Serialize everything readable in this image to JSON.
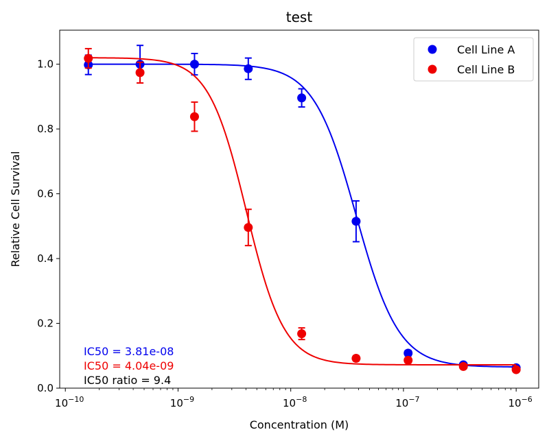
{
  "chart_data": {
    "type": "scatter",
    "title": "test",
    "xlabel": "Concentration (M)",
    "ylabel": "Relative Cell Survival",
    "xscale": "log",
    "xlim_log10": [
      -10.05,
      -5.8
    ],
    "ylim": [
      0,
      1.105
    ],
    "yticks": [
      0.0,
      0.2,
      0.4,
      0.6,
      0.8,
      1.0
    ],
    "ytick_labels": [
      "0.0",
      "0.2",
      "0.4",
      "0.6",
      "0.8",
      "1.0"
    ],
    "xticks_log10": [
      -10,
      -9,
      -8,
      -7,
      -6
    ],
    "xtick_labels": [
      "10",
      "10",
      "10",
      "10",
      "10"
    ],
    "xtick_exponents": [
      "−10",
      "−9",
      "−8",
      "−7",
      "−6"
    ],
    "legend_position": "top-right",
    "series": [
      {
        "name": "Cell Line A",
        "color": "#0000ee",
        "x": [
          1.6e-10,
          4.6e-10,
          1.4e-09,
          4.2e-09,
          1.25e-08,
          3.8e-08,
          1.1e-07,
          3.4e-07,
          1e-06
        ],
        "y": [
          0.998,
          1.0,
          1.0,
          0.986,
          0.896,
          0.515,
          0.108,
          0.072,
          0.063
        ],
        "err": [
          0.03,
          0.058,
          0.033,
          0.033,
          0.028,
          0.063,
          0.008,
          0.003,
          0.003
        ],
        "fit": {
          "top": 1.0,
          "bottom": 0.065,
          "ic50": 3.81e-08,
          "hill": 2.3
        }
      },
      {
        "name": "Cell Line B",
        "color": "#ee0000",
        "x": [
          1.6e-10,
          4.6e-10,
          1.4e-09,
          4.2e-09,
          1.25e-08,
          3.8e-08,
          1.1e-07,
          3.4e-07,
          1e-06
        ],
        "y": [
          1.018,
          0.974,
          0.838,
          0.496,
          0.168,
          0.092,
          0.086,
          0.067,
          0.057
        ],
        "err": [
          0.03,
          0.032,
          0.045,
          0.056,
          0.018,
          0.008,
          0.008,
          0.003,
          0.003
        ],
        "fit": {
          "top": 1.02,
          "bottom": 0.072,
          "ic50": 4.04e-09,
          "hill": 2.6
        }
      }
    ],
    "annotations": [
      {
        "text": "IC50 = 3.81e-08",
        "color": "#0000ee"
      },
      {
        "text": "IC50 = 4.04e-09",
        "color": "#ee0000"
      },
      {
        "text": "IC50 ratio = 9.4",
        "color": "#000000"
      }
    ]
  }
}
